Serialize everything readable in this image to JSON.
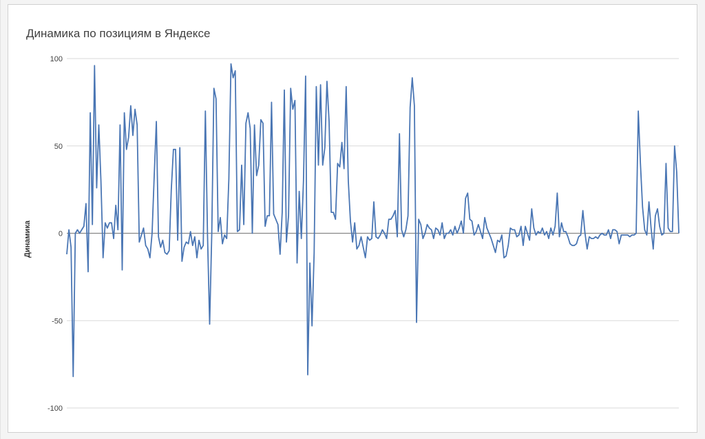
{
  "chart_data": {
    "type": "line",
    "title": "Динамика по позициям в Яндексе",
    "xlabel": "",
    "ylabel": "Динамика",
    "ylim": [
      -100,
      100
    ],
    "yticks": [
      100,
      50,
      0,
      -50,
      -100
    ],
    "ytick_labels": [
      "100",
      "50",
      "0",
      "-50",
      "-100"
    ],
    "grid": true,
    "legend": "none",
    "colors": {
      "line": "#4a76b4",
      "grid": "#d9d9d9",
      "zero_axis": "#868686"
    },
    "series": [
      {
        "values": [
          -12,
          2,
          -8,
          -82,
          0,
          2,
          0,
          2,
          4,
          17,
          -22,
          69,
          5,
          96,
          26,
          62,
          30,
          -14,
          6,
          3,
          6,
          6,
          -3,
          16,
          2,
          62,
          -21,
          69,
          48,
          55,
          73,
          56,
          71,
          62,
          -5,
          -1,
          3,
          -7,
          -9,
          -14,
          0,
          33,
          64,
          -2,
          -8,
          -4,
          -11,
          -12,
          -10,
          25,
          48,
          48,
          -4,
          49,
          -16,
          -8,
          -5,
          -6,
          1,
          -7,
          -2,
          -14,
          -4,
          -9,
          -7,
          70,
          -1,
          -52,
          0,
          83,
          77,
          1,
          9,
          -6,
          -1,
          -3,
          31,
          97,
          89,
          93,
          1,
          2,
          39,
          5,
          63,
          69,
          60,
          0,
          62,
          33,
          39,
          65,
          63,
          4,
          10,
          10,
          75,
          11,
          8,
          5,
          -12,
          12,
          82,
          -5,
          10,
          83,
          71,
          76,
          -17,
          24,
          -3,
          30,
          90,
          -81,
          -17,
          -53,
          -11,
          84,
          39,
          85,
          39,
          49,
          87,
          64,
          12,
          12,
          8,
          40,
          38,
          52,
          37,
          84,
          30,
          7,
          -5,
          6,
          -9,
          -7,
          -2,
          -8,
          -14,
          -2,
          -4,
          -3,
          18,
          -2,
          -3,
          -1,
          2,
          0,
          -3,
          8,
          8,
          10,
          13,
          -2,
          57,
          2,
          -2,
          2,
          10,
          72,
          89,
          73,
          -51,
          8,
          5,
          -3,
          0,
          5,
          3,
          2,
          -3,
          3,
          2,
          -1,
          6,
          -3,
          0,
          0,
          2,
          -1,
          4,
          0,
          3,
          7,
          0,
          20,
          23,
          8,
          7,
          -1,
          1,
          5,
          1,
          -3,
          9,
          3,
          0,
          -3,
          -7,
          -11,
          -4,
          -5,
          -1,
          -14,
          -13,
          -7,
          3,
          2,
          2,
          -2,
          -1,
          4,
          -7,
          4,
          0,
          -4,
          14,
          3,
          -1,
          1,
          0,
          3,
          -1,
          1,
          -3,
          3,
          -1,
          4,
          23,
          -2,
          6,
          1,
          1,
          -2,
          -6,
          -7,
          -7,
          -6,
          -2,
          -1,
          13,
          0,
          -9,
          -2,
          -3,
          -3,
          -2,
          -3,
          -1,
          0,
          -1,
          -1,
          2,
          -3,
          2,
          2,
          1,
          -6,
          -1,
          -1,
          -1,
          -1,
          -2,
          -1,
          -1,
          0,
          70,
          40,
          15,
          2,
          -1,
          18,
          3,
          -9,
          10,
          14,
          4,
          -1,
          0,
          40,
          3,
          1,
          1,
          50,
          35,
          0
        ]
      }
    ]
  }
}
